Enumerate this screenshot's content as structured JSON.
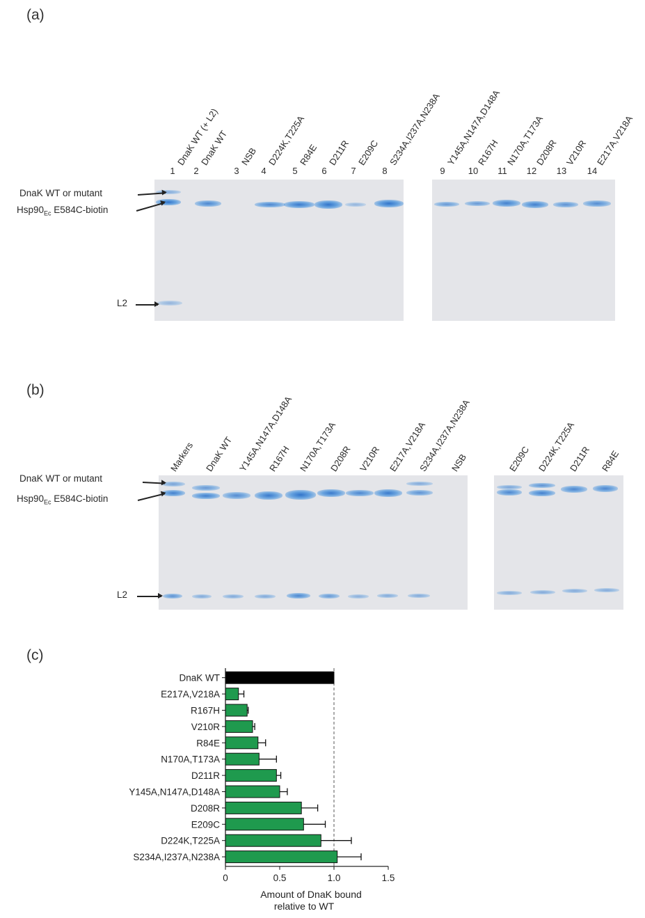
{
  "panel_a": {
    "letter": "(a)",
    "lanes": [
      {
        "num": "1",
        "label": "DnaK WT (+ L2)"
      },
      {
        "num": "2",
        "label": "DnaK WT"
      },
      {
        "num": "3",
        "label": "NSB"
      },
      {
        "num": "4",
        "label": "D224K,T225A"
      },
      {
        "num": "5",
        "label": "R84E"
      },
      {
        "num": "6",
        "label": "D211R"
      },
      {
        "num": "7",
        "label": "E209C"
      },
      {
        "num": "8",
        "label": "S234A,I237A,N238A"
      },
      {
        "num": "9",
        "label": "Y145A,N147A,D148A"
      },
      {
        "num": "10",
        "label": "R167H"
      },
      {
        "num": "11",
        "label": "N170A,T173A"
      },
      {
        "num": "12",
        "label": "D208R"
      },
      {
        "num": "13",
        "label": "V210R"
      },
      {
        "num": "14",
        "label": "E217A,V218A"
      }
    ],
    "row_labels": {
      "dnak": "DnaK WT or mutant",
      "hsp_prefix": "Hsp90",
      "hsp_sub": "Ec",
      "hsp_suffix": " E584C-biotin",
      "l2": "L2"
    }
  },
  "panel_b": {
    "letter": "(b)",
    "lanes": [
      {
        "label": "Markers"
      },
      {
        "label": "DnaK WT"
      },
      {
        "label": "Y145A,N147A,D148A"
      },
      {
        "label": "R167H"
      },
      {
        "label": "N170A,T173A"
      },
      {
        "label": "D208R"
      },
      {
        "label": "V210R"
      },
      {
        "label": "E217A,V218A"
      },
      {
        "label": "S234A,I237A,N238A"
      },
      {
        "label": "NSB"
      },
      {
        "label": "E209C"
      },
      {
        "label": "D224K,T225A"
      },
      {
        "label": "D211R"
      },
      {
        "label": "R84E"
      }
    ],
    "row_labels": {
      "dnak": "DnaK WT or mutant",
      "hsp_prefix": "Hsp90",
      "hsp_sub": "Ec",
      "hsp_suffix": " E584C-biotin",
      "l2": "L2"
    }
  },
  "panel_c": {
    "letter": "(c)"
  },
  "colors": {
    "bar_green": "#1f9a4e",
    "bar_black": "#000000",
    "gel_bg": "#e4e5e9",
    "band_blue": "#2f78cc"
  },
  "chart_data": {
    "type": "bar",
    "orientation": "horizontal",
    "categories": [
      "DnaK WT",
      "E217A,V218A",
      "R167H",
      "V210R",
      "R84E",
      "N170A,T173A",
      "D211R",
      "Y145A,N147A,D148A",
      "D208R",
      "E209C",
      "D224K,T225A",
      "S234A,I237A,N238A"
    ],
    "values": [
      1.0,
      0.12,
      0.2,
      0.25,
      0.3,
      0.31,
      0.47,
      0.5,
      0.7,
      0.72,
      0.88,
      1.03
    ],
    "errors": [
      0,
      0.05,
      0.01,
      0.02,
      0.07,
      0.16,
      0.04,
      0.07,
      0.15,
      0.2,
      0.28,
      0.22
    ],
    "bar_colors": [
      "#000000",
      "#1f9a4e",
      "#1f9a4e",
      "#1f9a4e",
      "#1f9a4e",
      "#1f9a4e",
      "#1f9a4e",
      "#1f9a4e",
      "#1f9a4e",
      "#1f9a4e",
      "#1f9a4e",
      "#1f9a4e"
    ],
    "xlim": [
      0,
      1.5
    ],
    "xticks": [
      "0",
      "0.5",
      "1.0",
      "1.5"
    ],
    "xtick_values": [
      0,
      0.5,
      1.0,
      1.5
    ],
    "xlabel_line1": "Amount of DnaK bound",
    "xlabel_line2": "relative to WT",
    "reference_line": 1.0
  }
}
